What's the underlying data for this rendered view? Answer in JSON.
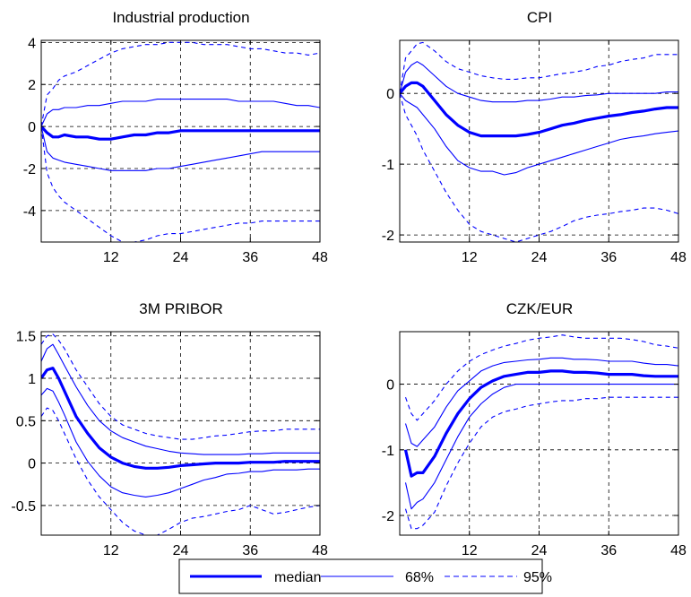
{
  "legend": {
    "entries": [
      {
        "label": "median",
        "style": "thick"
      },
      {
        "label": "68%",
        "style": "thin"
      },
      {
        "label": "95%",
        "style": "dashed"
      }
    ]
  },
  "colors": {
    "line": "#0000ff",
    "grid": "#000000",
    "axes": "#000000"
  },
  "chart_data": [
    {
      "type": "line",
      "title": "Industrial production",
      "xlabel": "",
      "ylabel": "",
      "xlim": [
        0,
        48
      ],
      "ylim": [
        -5.5,
        4.1
      ],
      "xticks": [
        12,
        24,
        36,
        48
      ],
      "yticks": [
        -4,
        -2,
        0,
        2,
        4
      ],
      "ytick_labels": [
        "-4",
        "-2",
        "0",
        "2",
        "4"
      ],
      "grid": true,
      "x": [
        0,
        1,
        2,
        3,
        4,
        6,
        8,
        10,
        12,
        14,
        16,
        18,
        20,
        22,
        24,
        26,
        28,
        30,
        32,
        34,
        36,
        38,
        40,
        42,
        44,
        46,
        48
      ],
      "series": [
        {
          "name": "median",
          "style": "thick",
          "values": [
            0,
            -0.3,
            -0.5,
            -0.5,
            -0.4,
            -0.5,
            -0.5,
            -0.6,
            -0.6,
            -0.5,
            -0.4,
            -0.4,
            -0.3,
            -0.3,
            -0.2,
            -0.2,
            -0.2,
            -0.2,
            -0.2,
            -0.2,
            -0.2,
            -0.2,
            -0.2,
            -0.2,
            -0.2,
            -0.2,
            -0.2
          ]
        },
        {
          "name": "68%",
          "style": "thin",
          "values": [
            0,
            0.6,
            0.8,
            0.8,
            0.9,
            0.9,
            1.0,
            1.0,
            1.1,
            1.2,
            1.2,
            1.2,
            1.3,
            1.3,
            1.3,
            1.3,
            1.3,
            1.3,
            1.3,
            1.2,
            1.2,
            1.2,
            1.2,
            1.1,
            1.0,
            1.0,
            0.9
          ]
        },
        {
          "name": "68%",
          "style": "thin",
          "values": [
            0,
            -1.2,
            -1.5,
            -1.6,
            -1.7,
            -1.8,
            -1.9,
            -2.0,
            -2.1,
            -2.1,
            -2.1,
            -2.1,
            -2.0,
            -2.0,
            -1.9,
            -1.8,
            -1.7,
            -1.6,
            -1.5,
            -1.4,
            -1.3,
            -1.2,
            -1.2,
            -1.2,
            -1.2,
            -1.2,
            -1.2
          ]
        },
        {
          "name": "95%",
          "style": "dashed",
          "values": [
            0,
            1.5,
            1.8,
            2.2,
            2.4,
            2.6,
            2.9,
            3.2,
            3.5,
            3.7,
            3.8,
            3.9,
            3.9,
            4.0,
            4.0,
            4.0,
            3.9,
            3.9,
            3.9,
            3.8,
            3.7,
            3.7,
            3.6,
            3.5,
            3.5,
            3.4,
            3.5
          ]
        },
        {
          "name": "95%",
          "style": "dashed",
          "values": [
            0,
            -2.2,
            -2.9,
            -3.3,
            -3.6,
            -4.0,
            -4.4,
            -4.8,
            -5.2,
            -5.5,
            -5.5,
            -5.4,
            -5.2,
            -5.1,
            -5.1,
            -5.0,
            -4.9,
            -4.8,
            -4.7,
            -4.6,
            -4.6,
            -4.5,
            -4.5,
            -4.5,
            -4.5,
            -4.5,
            -4.5
          ]
        }
      ]
    },
    {
      "type": "line",
      "title": "CPI",
      "xlabel": "",
      "ylabel": "",
      "xlim": [
        0,
        48
      ],
      "ylim": [
        -2.1,
        0.75
      ],
      "xticks": [
        12,
        24,
        36,
        48
      ],
      "yticks": [
        -2,
        -1,
        0
      ],
      "ytick_labels": [
        "-2",
        "-1",
        "0"
      ],
      "grid": true,
      "x": [
        0,
        1,
        2,
        3,
        4,
        6,
        8,
        10,
        12,
        14,
        16,
        18,
        20,
        22,
        24,
        26,
        28,
        30,
        32,
        34,
        36,
        38,
        40,
        42,
        44,
        46,
        48
      ],
      "series": [
        {
          "name": "median",
          "style": "thick",
          "values": [
            0,
            0.1,
            0.15,
            0.15,
            0.1,
            -0.1,
            -0.3,
            -0.45,
            -0.55,
            -0.6,
            -0.6,
            -0.6,
            -0.6,
            -0.58,
            -0.55,
            -0.5,
            -0.45,
            -0.42,
            -0.38,
            -0.35,
            -0.32,
            -0.3,
            -0.27,
            -0.25,
            -0.22,
            -0.2,
            -0.2
          ]
        },
        {
          "name": "68%",
          "style": "thin",
          "values": [
            0,
            0.3,
            0.4,
            0.45,
            0.4,
            0.25,
            0.1,
            0.0,
            -0.05,
            -0.1,
            -0.12,
            -0.12,
            -0.12,
            -0.1,
            -0.1,
            -0.08,
            -0.05,
            -0.05,
            -0.03,
            -0.02,
            0.0,
            0.0,
            0.0,
            0.0,
            0.0,
            0.02,
            0.02
          ]
        },
        {
          "name": "68%",
          "style": "thin",
          "values": [
            0,
            -0.1,
            -0.15,
            -0.2,
            -0.3,
            -0.5,
            -0.75,
            -0.95,
            -1.05,
            -1.1,
            -1.1,
            -1.15,
            -1.12,
            -1.05,
            -1.0,
            -0.95,
            -0.9,
            -0.85,
            -0.8,
            -0.75,
            -0.7,
            -0.65,
            -0.62,
            -0.6,
            -0.57,
            -0.55,
            -0.53
          ]
        },
        {
          "name": "95%",
          "style": "dashed",
          "values": [
            0,
            0.5,
            0.6,
            0.7,
            0.72,
            0.6,
            0.45,
            0.35,
            0.3,
            0.25,
            0.22,
            0.2,
            0.2,
            0.22,
            0.22,
            0.25,
            0.28,
            0.3,
            0.33,
            0.38,
            0.4,
            0.45,
            0.48,
            0.5,
            0.55,
            0.55,
            0.55
          ]
        },
        {
          "name": "95%",
          "style": "dashed",
          "values": [
            0,
            -0.3,
            -0.45,
            -0.6,
            -0.8,
            -1.1,
            -1.4,
            -1.65,
            -1.85,
            -1.95,
            -2.0,
            -2.05,
            -2.1,
            -2.05,
            -2.0,
            -1.95,
            -1.88,
            -1.8,
            -1.75,
            -1.72,
            -1.7,
            -1.67,
            -1.65,
            -1.62,
            -1.62,
            -1.65,
            -1.7
          ]
        }
      ]
    },
    {
      "type": "line",
      "title": "3M PRIBOR",
      "xlabel": "",
      "ylabel": "",
      "xlim": [
        0,
        48
      ],
      "ylim": [
        -0.85,
        1.55
      ],
      "xticks": [
        12,
        24,
        36,
        48
      ],
      "yticks": [
        -0.5,
        0,
        0.5,
        1,
        1.5
      ],
      "ytick_labels": [
        "-0.5",
        "0",
        "0.5",
        "1",
        "1.5"
      ],
      "grid": true,
      "x": [
        0,
        1,
        2,
        3,
        4,
        6,
        8,
        10,
        12,
        14,
        16,
        18,
        20,
        22,
        24,
        26,
        28,
        30,
        32,
        34,
        36,
        38,
        40,
        42,
        44,
        46,
        48
      ],
      "series": [
        {
          "name": "median",
          "style": "thick",
          "values": [
            1.0,
            1.1,
            1.12,
            1.0,
            0.85,
            0.55,
            0.35,
            0.18,
            0.07,
            0.0,
            -0.04,
            -0.06,
            -0.06,
            -0.05,
            -0.03,
            -0.02,
            -0.01,
            0.0,
            0.0,
            0.0,
            0.01,
            0.01,
            0.01,
            0.02,
            0.02,
            0.02,
            0.02
          ]
        },
        {
          "name": "68%",
          "style": "thin",
          "values": [
            1.2,
            1.35,
            1.4,
            1.28,
            1.15,
            0.9,
            0.68,
            0.5,
            0.38,
            0.3,
            0.25,
            0.2,
            0.17,
            0.14,
            0.12,
            0.11,
            0.1,
            0.1,
            0.1,
            0.1,
            0.11,
            0.11,
            0.12,
            0.12,
            0.12,
            0.12,
            0.12
          ]
        },
        {
          "name": "68%",
          "style": "thin",
          "values": [
            0.8,
            0.88,
            0.85,
            0.72,
            0.57,
            0.25,
            0.02,
            -0.15,
            -0.28,
            -0.35,
            -0.38,
            -0.4,
            -0.38,
            -0.35,
            -0.3,
            -0.25,
            -0.2,
            -0.17,
            -0.13,
            -0.12,
            -0.1,
            -0.1,
            -0.08,
            -0.08,
            -0.08,
            -0.07,
            -0.07
          ]
        },
        {
          "name": "95%",
          "style": "dashed",
          "values": [
            1.4,
            1.5,
            1.52,
            1.45,
            1.35,
            1.1,
            0.9,
            0.7,
            0.55,
            0.45,
            0.4,
            0.35,
            0.32,
            0.3,
            0.28,
            0.28,
            0.3,
            0.32,
            0.33,
            0.35,
            0.37,
            0.38,
            0.38,
            0.4,
            0.4,
            0.4,
            0.4
          ]
        },
        {
          "name": "95%",
          "style": "dashed",
          "values": [
            0.55,
            0.65,
            0.62,
            0.5,
            0.35,
            0.05,
            -0.2,
            -0.4,
            -0.55,
            -0.7,
            -0.8,
            -0.85,
            -0.85,
            -0.78,
            -0.7,
            -0.65,
            -0.63,
            -0.6,
            -0.57,
            -0.55,
            -0.5,
            -0.55,
            -0.6,
            -0.58,
            -0.55,
            -0.52,
            -0.5
          ]
        }
      ]
    },
    {
      "type": "line",
      "title": "CZK/EUR",
      "xlabel": "",
      "ylabel": "",
      "xlim": [
        0,
        48
      ],
      "ylim": [
        -2.3,
        0.8
      ],
      "xticks": [
        12,
        24,
        36,
        48
      ],
      "yticks": [
        -2,
        -1,
        0
      ],
      "ytick_labels": [
        "-2",
        "-1",
        "0"
      ],
      "grid": true,
      "x": [
        1,
        2,
        3,
        4,
        6,
        8,
        10,
        12,
        14,
        16,
        18,
        20,
        22,
        24,
        26,
        28,
        30,
        32,
        34,
        36,
        38,
        40,
        42,
        44,
        46,
        48
      ],
      "series": [
        {
          "name": "median",
          "style": "thick",
          "values": [
            -1.0,
            -1.4,
            -1.35,
            -1.35,
            -1.1,
            -0.75,
            -0.45,
            -0.22,
            -0.05,
            0.05,
            0.12,
            0.15,
            0.18,
            0.18,
            0.2,
            0.2,
            0.18,
            0.18,
            0.17,
            0.15,
            0.15,
            0.15,
            0.13,
            0.12,
            0.12,
            0.12
          ]
        },
        {
          "name": "68%",
          "style": "thin",
          "values": [
            -0.6,
            -0.9,
            -0.95,
            -0.85,
            -0.65,
            -0.35,
            -0.1,
            0.05,
            0.2,
            0.28,
            0.33,
            0.35,
            0.37,
            0.38,
            0.4,
            0.4,
            0.38,
            0.38,
            0.37,
            0.35,
            0.35,
            0.35,
            0.32,
            0.3,
            0.3,
            0.28
          ]
        },
        {
          "name": "68%",
          "style": "thin",
          "values": [
            -1.5,
            -1.9,
            -1.8,
            -1.75,
            -1.5,
            -1.15,
            -0.8,
            -0.5,
            -0.3,
            -0.15,
            -0.05,
            0.0,
            0.0,
            0.0,
            0.0,
            0.0,
            0.0,
            0.0,
            0.0,
            0.0,
            0.0,
            0.0,
            0.0,
            0.0,
            0.0,
            0.0
          ]
        },
        {
          "name": "95%",
          "style": "dashed",
          "values": [
            -0.2,
            -0.45,
            -0.55,
            -0.45,
            -0.25,
            0.0,
            0.2,
            0.35,
            0.45,
            0.52,
            0.58,
            0.62,
            0.67,
            0.7,
            0.72,
            0.75,
            0.72,
            0.7,
            0.7,
            0.7,
            0.7,
            0.68,
            0.65,
            0.6,
            0.58,
            0.55
          ]
        },
        {
          "name": "95%",
          "style": "dashed",
          "values": [
            -1.9,
            -2.2,
            -2.2,
            -2.15,
            -1.95,
            -1.55,
            -1.2,
            -0.9,
            -0.65,
            -0.5,
            -0.42,
            -0.38,
            -0.33,
            -0.3,
            -0.27,
            -0.25,
            -0.25,
            -0.22,
            -0.22,
            -0.2,
            -0.2,
            -0.2,
            -0.2,
            -0.2,
            -0.2,
            -0.2
          ]
        }
      ]
    }
  ]
}
